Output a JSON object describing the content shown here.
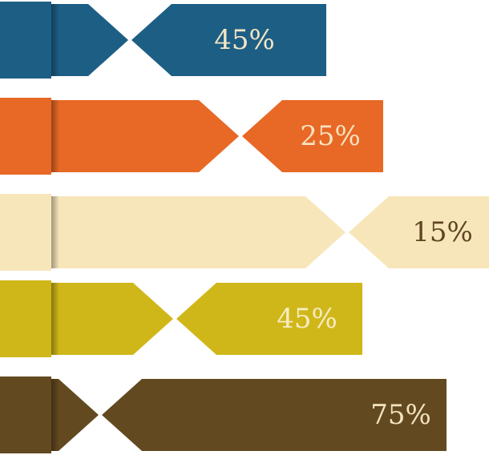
{
  "bars": [
    {
      "label": "45%",
      "color": "#1d5e85",
      "text_color": "#f3e6c4"
    },
    {
      "label": "25%",
      "color": "#e86825",
      "text_color": "#f6e2c0"
    },
    {
      "label": "15%",
      "color": "#f8e6bb",
      "text_color": "#5e4522"
    },
    {
      "label": "45%",
      "color": "#d0b719",
      "text_color": "#f7ecc4"
    },
    {
      "label": "75%",
      "color": "#634920",
      "text_color": "#f3e3c0"
    }
  ]
}
